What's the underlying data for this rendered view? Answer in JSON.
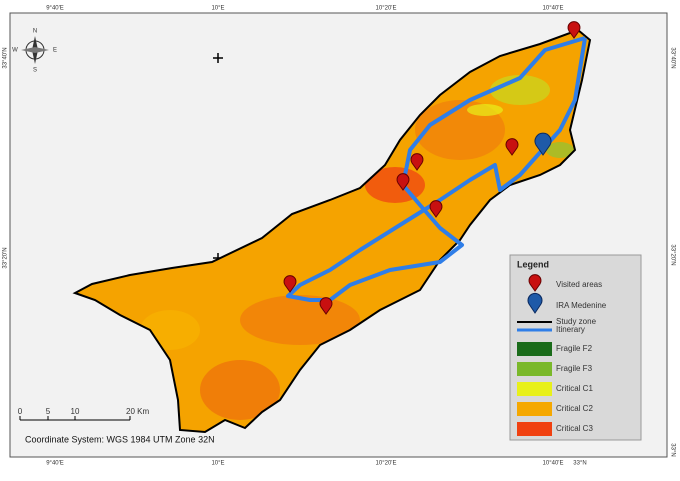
{
  "frame": {
    "top_labels": [
      "9°40'E",
      "10°E",
      "10°20'E",
      "10°40'E"
    ],
    "bottom_labels": [
      "9°40'E",
      "10°E",
      "10°20'E",
      "10°40'E",
      "33°N"
    ],
    "left_labels": [
      "33°40'N",
      "33°20'N"
    ],
    "right_labels": [
      "33°40'N",
      "33°20'N",
      "33°N"
    ]
  },
  "compass": {
    "n": "N",
    "s": "S",
    "e": "E",
    "w": "W"
  },
  "scale_bar": {
    "ticks": [
      "0",
      "5",
      "10",
      "20 Km"
    ]
  },
  "coordinate_system": "Coordinate System: WGS 1984 UTM Zone 32N",
  "legend": {
    "title": "Legend",
    "items": [
      "Visited areas",
      "IRA Medenine",
      "Study zone",
      "Itinerary",
      "Fragile F2",
      "Fragile F3",
      "Critical C1",
      "Critical C2",
      "Critical C3"
    ]
  }
}
